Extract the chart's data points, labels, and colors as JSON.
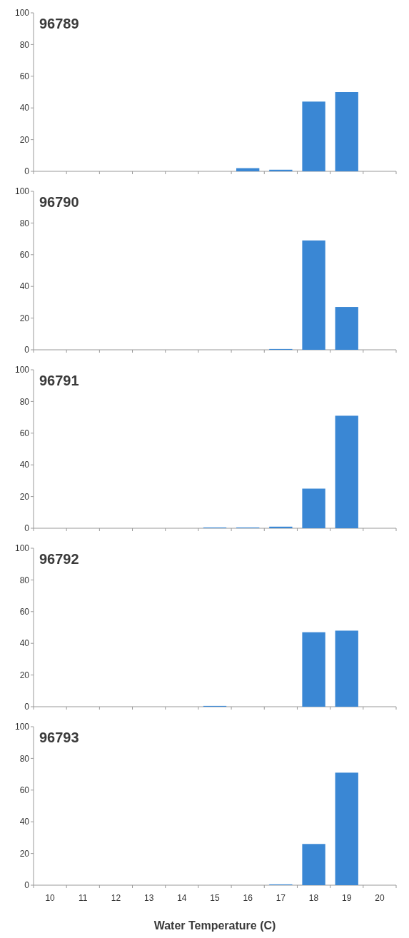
{
  "chart_data": [
    {
      "type": "bar",
      "title": "96789",
      "categories": [
        "10",
        "11",
        "12",
        "13",
        "14",
        "15",
        "16",
        "17",
        "18",
        "19",
        "20"
      ],
      "values": [
        0,
        0,
        0,
        0,
        0,
        0,
        2,
        1,
        44,
        50,
        0
      ],
      "color": "#3a87d4",
      "ylim": [
        0,
        100
      ],
      "yticks": [
        0,
        20,
        40,
        60,
        80,
        100
      ],
      "grid": false,
      "tick_labels": "y"
    },
    {
      "type": "bar",
      "title": "96790",
      "categories": [
        "10",
        "11",
        "12",
        "13",
        "14",
        "15",
        "16",
        "17",
        "18",
        "19",
        "20"
      ],
      "values": [
        0,
        0,
        0,
        0,
        0,
        0,
        0,
        0.5,
        69,
        27,
        0
      ],
      "color": "#3a87d4",
      "ylim": [
        0,
        100
      ],
      "yticks": [
        0,
        20,
        40,
        60,
        80,
        100
      ],
      "grid": false,
      "tick_labels": "y"
    },
    {
      "type": "bar",
      "title": "96791",
      "categories": [
        "10",
        "11",
        "12",
        "13",
        "14",
        "15",
        "16",
        "17",
        "18",
        "19",
        "20"
      ],
      "values": [
        0,
        0,
        0,
        0,
        0,
        0.5,
        0.5,
        1,
        25,
        71,
        0
      ],
      "color": "#3a87d4",
      "ylim": [
        0,
        100
      ],
      "yticks": [
        0,
        20,
        40,
        60,
        80,
        100
      ],
      "grid": false,
      "tick_labels": "y"
    },
    {
      "type": "bar",
      "title": "96792",
      "categories": [
        "10",
        "11",
        "12",
        "13",
        "14",
        "15",
        "16",
        "17",
        "18",
        "19",
        "20"
      ],
      "values": [
        0,
        0,
        0,
        0,
        0,
        0.5,
        0,
        0,
        47,
        48,
        0
      ],
      "color": "#3a87d4",
      "ylim": [
        0,
        100
      ],
      "yticks": [
        0,
        20,
        40,
        60,
        80,
        100
      ],
      "grid": false,
      "tick_labels": "y"
    },
    {
      "type": "bar",
      "title": "96793",
      "xlabel": "Water Temperature (C)",
      "categories": [
        "10",
        "11",
        "12",
        "13",
        "14",
        "15",
        "16",
        "17",
        "18",
        "19",
        "20"
      ],
      "values": [
        0,
        0,
        0,
        0,
        0,
        0,
        0,
        0.5,
        26,
        71,
        0
      ],
      "color": "#3a87d4",
      "ylim": [
        0,
        100
      ],
      "yticks": [
        0,
        20,
        40,
        60,
        80,
        100
      ],
      "grid": false
    }
  ]
}
